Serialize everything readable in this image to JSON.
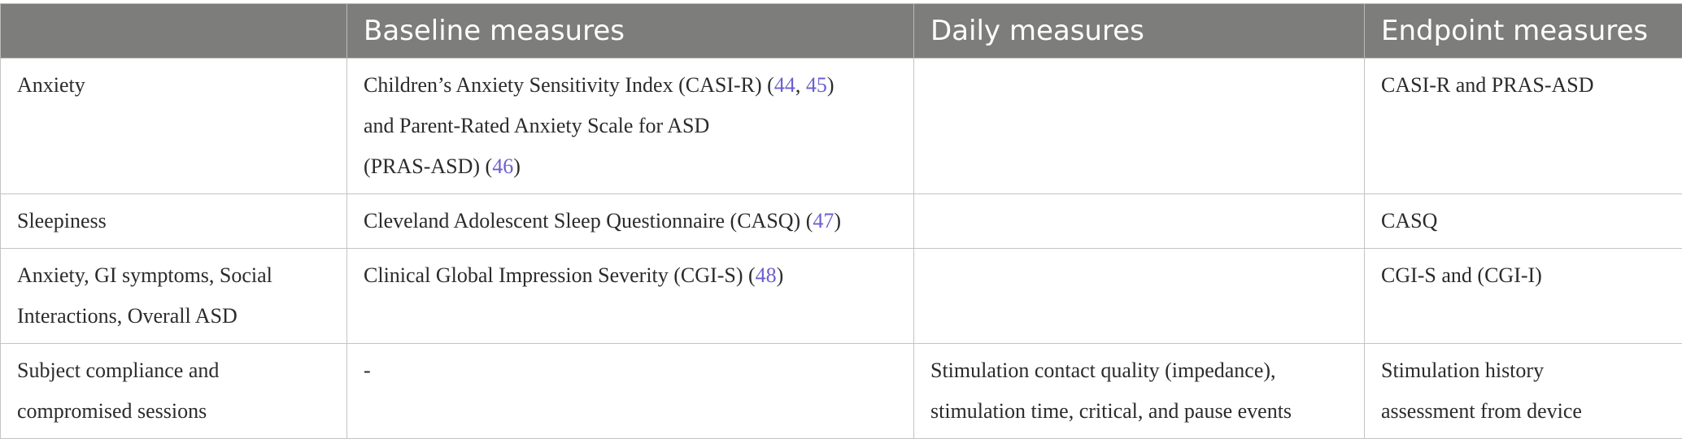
{
  "headers": [
    "",
    "Baseline measures",
    "Daily measures",
    "Endpoint measures"
  ],
  "colors": {
    "header_bg": "#7d7e7c",
    "header_text": "#ffffff",
    "ref_link": "#6b5fd0",
    "border": "#c4c4c4"
  },
  "rows": [
    {
      "label": "Anxiety",
      "baseline": {
        "l1_text": "Children’s Anxiety Sensitivity Index (CASI-R) (",
        "l1_ref1": "44",
        "l1_sep": ", ",
        "l1_ref2": "45",
        "l1_end": ")",
        "l2_text": "and Parent-Rated Anxiety Scale for ASD",
        "l3_text": "(PRAS-ASD) (",
        "l3_ref": "46",
        "l3_end": ")"
      },
      "daily": {
        "l1": "",
        "l2": ""
      },
      "endpoint": {
        "l1": "CASI-R and PRAS-ASD",
        "l2": ""
      }
    },
    {
      "label": "Sleepiness",
      "baseline": {
        "text": "Cleveland Adolescent Sleep Questionnaire (CASQ) (",
        "ref": "47",
        "end": ")"
      },
      "daily": {
        "l1": "",
        "l2": ""
      },
      "endpoint": {
        "l1": "CASQ",
        "l2": ""
      }
    },
    {
      "label": "Anxiety, GI symptoms, Social Interactions, Overall ASD",
      "baseline": {
        "text": "Clinical Global Impression Severity (CGI-S) (",
        "ref": "48",
        "end": ")"
      },
      "daily": {
        "l1": "",
        "l2": ""
      },
      "endpoint": {
        "l1": "CGI-S and (CGI-I)",
        "l2": ""
      }
    },
    {
      "label": "Subject compliance and compromised sessions",
      "baseline": {
        "text": "-"
      },
      "daily": {
        "l1": "Stimulation contact quality (impedance),",
        "l2": "stimulation time, critical, and pause events"
      },
      "endpoint": {
        "l1": "Stimulation history",
        "l2": "assessment from device"
      }
    }
  ]
}
